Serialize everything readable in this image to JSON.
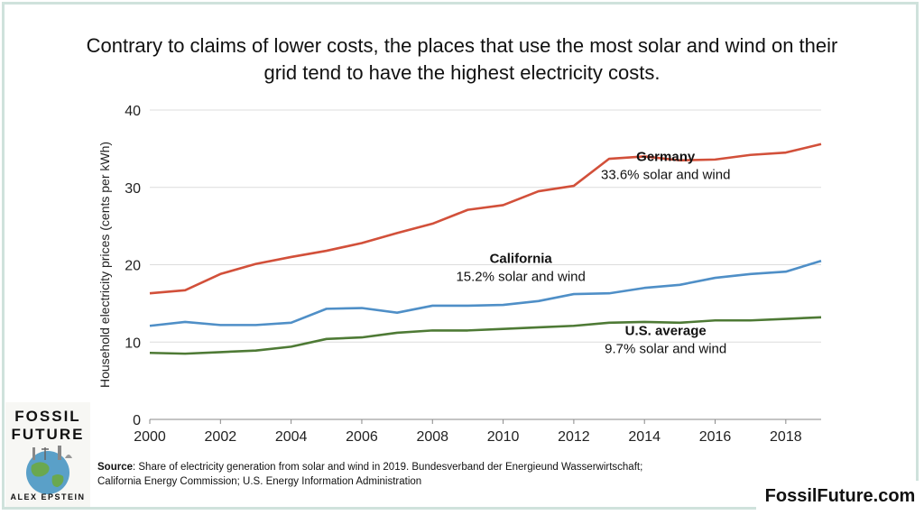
{
  "title_line1": "Contrary to claims of lower costs, the places that use the most solar and wind on their",
  "title_line2": "grid tend to have the highest electricity costs.",
  "colors": {
    "germany": "#d2503a",
    "california": "#4f8fc7",
    "us": "#4e7a35",
    "grid": "#dcdcdc",
    "axis": "#888888"
  },
  "logo": {
    "line1": "FOSSIL",
    "line2": "FUTURE",
    "author": "ALEX EPSTEIN",
    "icon": "globe-icon"
  },
  "source": {
    "label": "Source",
    "text": ": Share of electricity generation from solar and wind in 2019. Bundesverband der Energieund Wasserwirtschaft; California Energy Commission; U.S. Energy Information Administration"
  },
  "website": "FossilFuture.com",
  "chart_data": {
    "type": "line",
    "title": "",
    "xlabel": "",
    "ylabel": "Household electricity prices (cents per kWh)",
    "xlim": [
      2000,
      2019
    ],
    "ylim": [
      0,
      40
    ],
    "xticks": [
      "2000",
      "2002",
      "2004",
      "2006",
      "2008",
      "2010",
      "2012",
      "2014",
      "2016",
      "2018"
    ],
    "yticks": [
      "0",
      "10",
      "20",
      "30",
      "40"
    ],
    "grid": true,
    "x": [
      2000,
      2001,
      2002,
      2003,
      2004,
      2005,
      2006,
      2007,
      2008,
      2009,
      2010,
      2011,
      2012,
      2013,
      2014,
      2015,
      2016,
      2017,
      2018,
      2019
    ],
    "series": [
      {
        "key": "germany",
        "values": [
          16.3,
          16.7,
          18.8,
          20.1,
          21.0,
          21.8,
          22.8,
          24.1,
          25.3,
          27.1,
          27.7,
          29.5,
          30.2,
          33.7,
          34.0,
          33.5,
          33.6,
          34.2,
          34.5,
          35.6
        ],
        "label_name": "Germany",
        "label_detail": "33.6% solar and wind"
      },
      {
        "key": "california",
        "values": [
          12.1,
          12.6,
          12.2,
          12.2,
          12.5,
          14.3,
          14.4,
          13.8,
          14.7,
          14.7,
          14.8,
          15.3,
          16.2,
          16.3,
          17.0,
          17.4,
          18.3,
          18.8,
          19.1,
          20.5
        ],
        "label_name": "California",
        "label_detail": "15.2% solar and wind"
      },
      {
        "key": "us",
        "values": [
          8.6,
          8.5,
          8.7,
          8.9,
          9.4,
          10.4,
          10.6,
          11.2,
          11.5,
          11.5,
          11.7,
          11.9,
          12.1,
          12.5,
          12.6,
          12.5,
          12.8,
          12.8,
          13.0,
          13.2
        ],
        "label_name": "U.S. average",
        "label_detail": "9.7% solar and wind"
      }
    ]
  }
}
